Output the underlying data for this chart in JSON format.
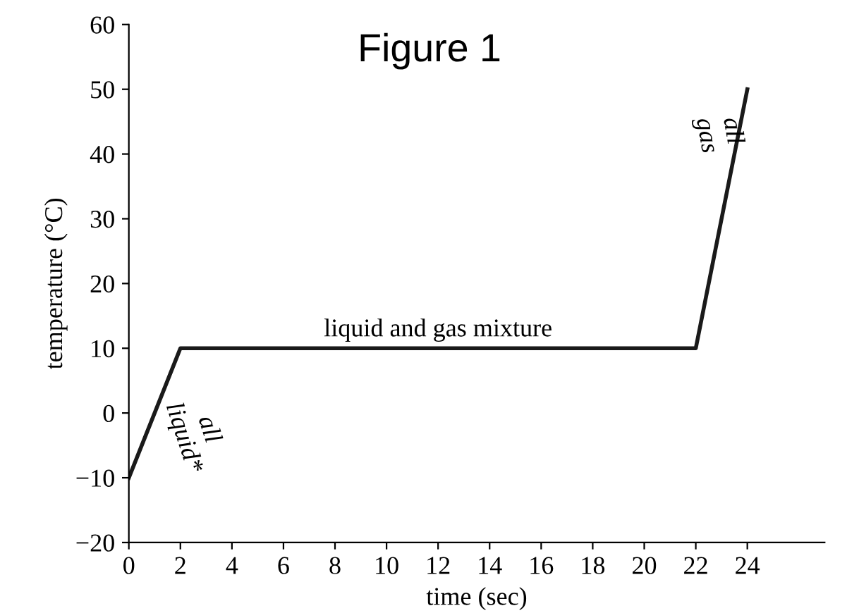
{
  "chart_data": {
    "type": "line",
    "title": "Figure 1",
    "xlabel": "time (sec)",
    "ylabel": "temperature (°C)",
    "x": [
      0,
      2,
      22,
      24
    ],
    "series": [
      {
        "color": "#1a1a1a",
        "values": [
          -10,
          10,
          10,
          50
        ]
      }
    ],
    "xlim": [
      0,
      27
    ],
    "xticks": [
      0,
      2,
      4,
      6,
      8,
      10,
      12,
      14,
      16,
      18,
      20,
      22,
      24
    ],
    "ylim": [
      -20,
      60
    ],
    "yticks": [
      {
        "value": -20,
        "label": "−20"
      },
      {
        "value": -10,
        "label": "−10"
      },
      0,
      10,
      20,
      30,
      40,
      50,
      60
    ],
    "grid": false,
    "marker": "none",
    "line_style": "solid",
    "annotations": [
      {
        "text": "liquid and gas mixture",
        "x": 12,
        "y": 10
      },
      "all\nliquid*",
      "all\ngas"
    ]
  }
}
